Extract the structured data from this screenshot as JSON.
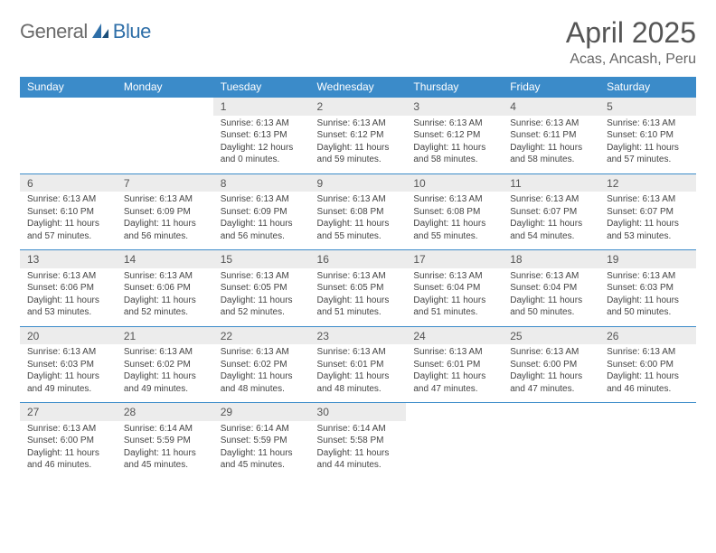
{
  "brand": {
    "text1": "General",
    "text2": "Blue"
  },
  "title": "April 2025",
  "location": "Acas, Ancash, Peru",
  "colors": {
    "header_bg": "#3b8bc9",
    "header_fg": "#ffffff",
    "daynum_bg": "#ececec",
    "rule": "#3b8bc9",
    "logo_gray": "#6b6b6b",
    "logo_blue": "#2f6fa8"
  },
  "day_headers": [
    "Sunday",
    "Monday",
    "Tuesday",
    "Wednesday",
    "Thursday",
    "Friday",
    "Saturday"
  ],
  "weeks": [
    [
      null,
      null,
      {
        "n": "1",
        "sr": "Sunrise: 6:13 AM",
        "ss": "Sunset: 6:13 PM",
        "dl": "Daylight: 12 hours and 0 minutes."
      },
      {
        "n": "2",
        "sr": "Sunrise: 6:13 AM",
        "ss": "Sunset: 6:12 PM",
        "dl": "Daylight: 11 hours and 59 minutes."
      },
      {
        "n": "3",
        "sr": "Sunrise: 6:13 AM",
        "ss": "Sunset: 6:12 PM",
        "dl": "Daylight: 11 hours and 58 minutes."
      },
      {
        "n": "4",
        "sr": "Sunrise: 6:13 AM",
        "ss": "Sunset: 6:11 PM",
        "dl": "Daylight: 11 hours and 58 minutes."
      },
      {
        "n": "5",
        "sr": "Sunrise: 6:13 AM",
        "ss": "Sunset: 6:10 PM",
        "dl": "Daylight: 11 hours and 57 minutes."
      }
    ],
    [
      {
        "n": "6",
        "sr": "Sunrise: 6:13 AM",
        "ss": "Sunset: 6:10 PM",
        "dl": "Daylight: 11 hours and 57 minutes."
      },
      {
        "n": "7",
        "sr": "Sunrise: 6:13 AM",
        "ss": "Sunset: 6:09 PM",
        "dl": "Daylight: 11 hours and 56 minutes."
      },
      {
        "n": "8",
        "sr": "Sunrise: 6:13 AM",
        "ss": "Sunset: 6:09 PM",
        "dl": "Daylight: 11 hours and 56 minutes."
      },
      {
        "n": "9",
        "sr": "Sunrise: 6:13 AM",
        "ss": "Sunset: 6:08 PM",
        "dl": "Daylight: 11 hours and 55 minutes."
      },
      {
        "n": "10",
        "sr": "Sunrise: 6:13 AM",
        "ss": "Sunset: 6:08 PM",
        "dl": "Daylight: 11 hours and 55 minutes."
      },
      {
        "n": "11",
        "sr": "Sunrise: 6:13 AM",
        "ss": "Sunset: 6:07 PM",
        "dl": "Daylight: 11 hours and 54 minutes."
      },
      {
        "n": "12",
        "sr": "Sunrise: 6:13 AM",
        "ss": "Sunset: 6:07 PM",
        "dl": "Daylight: 11 hours and 53 minutes."
      }
    ],
    [
      {
        "n": "13",
        "sr": "Sunrise: 6:13 AM",
        "ss": "Sunset: 6:06 PM",
        "dl": "Daylight: 11 hours and 53 minutes."
      },
      {
        "n": "14",
        "sr": "Sunrise: 6:13 AM",
        "ss": "Sunset: 6:06 PM",
        "dl": "Daylight: 11 hours and 52 minutes."
      },
      {
        "n": "15",
        "sr": "Sunrise: 6:13 AM",
        "ss": "Sunset: 6:05 PM",
        "dl": "Daylight: 11 hours and 52 minutes."
      },
      {
        "n": "16",
        "sr": "Sunrise: 6:13 AM",
        "ss": "Sunset: 6:05 PM",
        "dl": "Daylight: 11 hours and 51 minutes."
      },
      {
        "n": "17",
        "sr": "Sunrise: 6:13 AM",
        "ss": "Sunset: 6:04 PM",
        "dl": "Daylight: 11 hours and 51 minutes."
      },
      {
        "n": "18",
        "sr": "Sunrise: 6:13 AM",
        "ss": "Sunset: 6:04 PM",
        "dl": "Daylight: 11 hours and 50 minutes."
      },
      {
        "n": "19",
        "sr": "Sunrise: 6:13 AM",
        "ss": "Sunset: 6:03 PM",
        "dl": "Daylight: 11 hours and 50 minutes."
      }
    ],
    [
      {
        "n": "20",
        "sr": "Sunrise: 6:13 AM",
        "ss": "Sunset: 6:03 PM",
        "dl": "Daylight: 11 hours and 49 minutes."
      },
      {
        "n": "21",
        "sr": "Sunrise: 6:13 AM",
        "ss": "Sunset: 6:02 PM",
        "dl": "Daylight: 11 hours and 49 minutes."
      },
      {
        "n": "22",
        "sr": "Sunrise: 6:13 AM",
        "ss": "Sunset: 6:02 PM",
        "dl": "Daylight: 11 hours and 48 minutes."
      },
      {
        "n": "23",
        "sr": "Sunrise: 6:13 AM",
        "ss": "Sunset: 6:01 PM",
        "dl": "Daylight: 11 hours and 48 minutes."
      },
      {
        "n": "24",
        "sr": "Sunrise: 6:13 AM",
        "ss": "Sunset: 6:01 PM",
        "dl": "Daylight: 11 hours and 47 minutes."
      },
      {
        "n": "25",
        "sr": "Sunrise: 6:13 AM",
        "ss": "Sunset: 6:00 PM",
        "dl": "Daylight: 11 hours and 47 minutes."
      },
      {
        "n": "26",
        "sr": "Sunrise: 6:13 AM",
        "ss": "Sunset: 6:00 PM",
        "dl": "Daylight: 11 hours and 46 minutes."
      }
    ],
    [
      {
        "n": "27",
        "sr": "Sunrise: 6:13 AM",
        "ss": "Sunset: 6:00 PM",
        "dl": "Daylight: 11 hours and 46 minutes."
      },
      {
        "n": "28",
        "sr": "Sunrise: 6:14 AM",
        "ss": "Sunset: 5:59 PM",
        "dl": "Daylight: 11 hours and 45 minutes."
      },
      {
        "n": "29",
        "sr": "Sunrise: 6:14 AM",
        "ss": "Sunset: 5:59 PM",
        "dl": "Daylight: 11 hours and 45 minutes."
      },
      {
        "n": "30",
        "sr": "Sunrise: 6:14 AM",
        "ss": "Sunset: 5:58 PM",
        "dl": "Daylight: 11 hours and 44 minutes."
      },
      null,
      null,
      null
    ]
  ]
}
